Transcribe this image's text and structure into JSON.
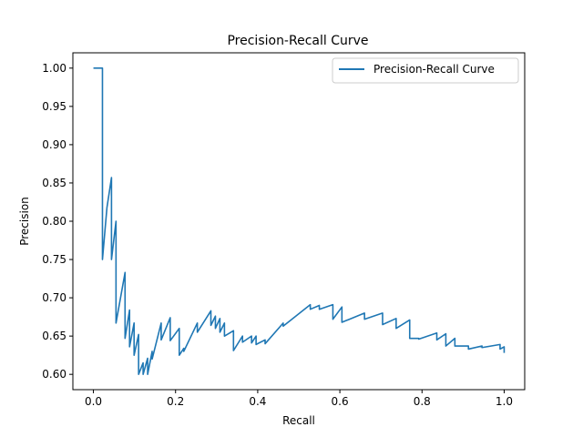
{
  "chart_data": {
    "type": "line",
    "title": "Precision-Recall Curve",
    "xlabel": "Recall",
    "ylabel": "Precision",
    "xlim": [
      -0.05,
      1.05
    ],
    "ylim": [
      0.58,
      1.02
    ],
    "xticks": [
      0.0,
      0.2,
      0.4,
      0.6,
      0.8,
      1.0
    ],
    "xtick_labels": [
      "0.0",
      "0.2",
      "0.4",
      "0.6",
      "0.8",
      "1.0"
    ],
    "yticks": [
      0.6,
      0.65,
      0.7,
      0.75,
      0.8,
      0.85,
      0.9,
      0.95,
      1.0
    ],
    "ytick_labels": [
      "0.60",
      "0.65",
      "0.70",
      "0.75",
      "0.80",
      "0.85",
      "0.90",
      "0.95",
      "1.00"
    ],
    "grid": false,
    "legend": "top-right",
    "series": [
      {
        "name": "Precision-Recall Curve",
        "color": "#1f77b4",
        "x": [
          0.0,
          0.022,
          0.022,
          0.033,
          0.044,
          0.044,
          0.055,
          0.055,
          0.077,
          0.077,
          0.088,
          0.088,
          0.099,
          0.099,
          0.11,
          0.11,
          0.121,
          0.121,
          0.132,
          0.132,
          0.143,
          0.143,
          0.165,
          0.165,
          0.187,
          0.187,
          0.209,
          0.209,
          0.22,
          0.22,
          0.253,
          0.253,
          0.286,
          0.286,
          0.297,
          0.297,
          0.308,
          0.308,
          0.319,
          0.319,
          0.341,
          0.341,
          0.363,
          0.363,
          0.385,
          0.385,
          0.396,
          0.396,
          0.418,
          0.418,
          0.462,
          0.462,
          0.528,
          0.528,
          0.55,
          0.55,
          0.583,
          0.583,
          0.605,
          0.605,
          0.66,
          0.66,
          0.704,
          0.704,
          0.737,
          0.737,
          0.77,
          0.77,
          0.792,
          0.792,
          0.836,
          0.836,
          0.858,
          0.858,
          0.88,
          0.88,
          0.913,
          0.913,
          0.946,
          0.946,
          0.99,
          0.99,
          1.0,
          1.0
        ],
        "y": [
          1.0,
          1.0,
          0.75,
          0.818,
          0.857,
          0.75,
          0.8,
          0.667,
          0.733,
          0.647,
          0.684,
          0.636,
          0.667,
          0.625,
          0.652,
          0.6,
          0.615,
          0.6,
          0.621,
          0.6,
          0.63,
          0.62,
          0.667,
          0.645,
          0.674,
          0.644,
          0.66,
          0.625,
          0.634,
          0.63,
          0.667,
          0.655,
          0.683,
          0.664,
          0.676,
          0.66,
          0.673,
          0.655,
          0.667,
          0.65,
          0.657,
          0.631,
          0.65,
          0.642,
          0.65,
          0.641,
          0.65,
          0.639,
          0.645,
          0.64,
          0.667,
          0.663,
          0.691,
          0.685,
          0.69,
          0.685,
          0.691,
          0.672,
          0.688,
          0.668,
          0.68,
          0.672,
          0.68,
          0.665,
          0.673,
          0.66,
          0.671,
          0.647,
          0.647,
          0.646,
          0.654,
          0.645,
          0.653,
          0.637,
          0.647,
          0.637,
          0.637,
          0.633,
          0.637,
          0.635,
          0.639,
          0.633,
          0.636,
          0.628
        ]
      }
    ]
  }
}
